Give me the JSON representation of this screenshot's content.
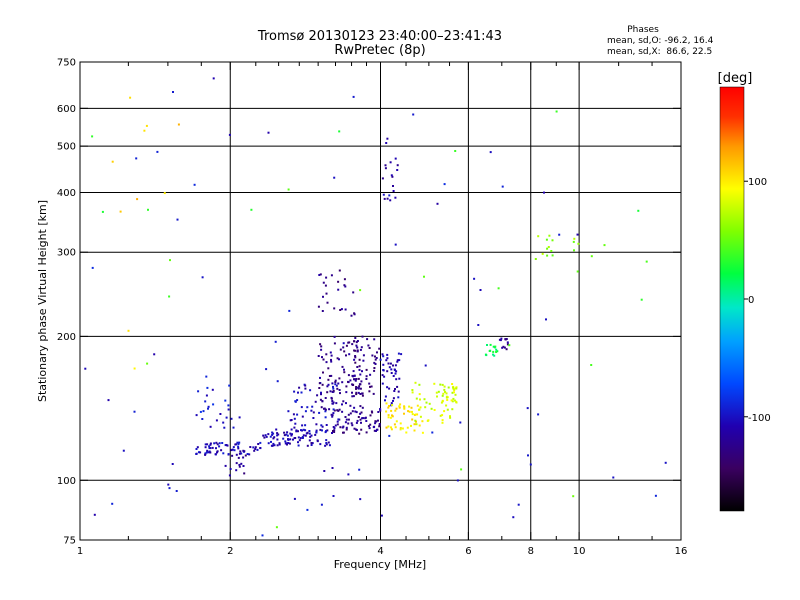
{
  "chart_data": {
    "type": "scatter",
    "title": "Tromsø 20130123 23:40:00–23:41:43",
    "subtitle": "RwPretec (8p)",
    "phases": {
      "heading": "Phases",
      "line_o": "mean, sd,O: -96.2, 16.4",
      "line_x": "mean, sd,X:  86.6, 22.5"
    },
    "xlabel": "Frequency [MHz]",
    "ylabel": "Stationary phase Virtual Height [km]",
    "x_scale": "log",
    "y_scale": "log",
    "xlim": [
      1,
      16
    ],
    "ylim": [
      75,
      750
    ],
    "x_ticks": [
      1,
      2,
      4,
      6,
      8,
      10,
      16
    ],
    "x_minor_ticks": [
      1.25,
      1.5,
      1.75,
      2.25,
      2.5,
      2.75,
      3,
      3.25,
      3.5,
      3.75,
      4.5,
      5,
      5.5,
      7,
      9,
      12,
      14
    ],
    "y_ticks": [
      75,
      100,
      200,
      300,
      400,
      500,
      600,
      750
    ],
    "x_grid": [
      2,
      4,
      6,
      8,
      10
    ],
    "y_grid": [
      100,
      200,
      300,
      400,
      500,
      600
    ],
    "colorbar": {
      "label": "[deg]",
      "range": [
        -180,
        180
      ],
      "ticks": [
        100,
        0,
        -100
      ]
    },
    "traces": [
      {
        "x_range": [
          1.7,
          2.3
        ],
        "y_range": [
          113,
          120
        ],
        "phase": -105,
        "count": 70
      },
      {
        "x_range": [
          2.3,
          3.2
        ],
        "y_range": [
          118,
          128
        ],
        "phase": -110,
        "count": 90
      },
      {
        "x_range": [
          3.2,
          4.0
        ],
        "y_range": [
          125,
          140
        ],
        "phase": -125,
        "count": 70
      },
      {
        "x_range": [
          2.6,
          3.3
        ],
        "y_range": [
          125,
          160
        ],
        "phase": -105,
        "count": 60
      },
      {
        "x_range": [
          3.0,
          3.7
        ],
        "y_range": [
          140,
          200
        ],
        "phase": -125,
        "count": 110
      },
      {
        "x_range": [
          3.5,
          4.0
        ],
        "y_range": [
          150,
          200
        ],
        "phase": -130,
        "count": 50
      },
      {
        "x_range": [
          3.0,
          3.6
        ],
        "y_range": [
          220,
          280
        ],
        "phase": -125,
        "count": 25
      },
      {
        "x_range": [
          4.0,
          4.4
        ],
        "y_range": [
          140,
          185
        ],
        "phase": -110,
        "count": 45
      },
      {
        "x_range": [
          4.1,
          5.0
        ],
        "y_range": [
          125,
          145
        ],
        "phase": 100,
        "count": 55
      },
      {
        "x_range": [
          4.6,
          5.6
        ],
        "y_range": [
          130,
          160
        ],
        "phase": 80,
        "count": 45
      },
      {
        "x_range": [
          5.3,
          5.7
        ],
        "y_range": [
          145,
          160
        ],
        "phase": 80,
        "count": 20
      },
      {
        "x_range": [
          1.7,
          2.1
        ],
        "y_range": [
          128,
          158
        ],
        "phase": -95,
        "count": 25
      },
      {
        "x_range": [
          1.9,
          2.2
        ],
        "y_range": [
          102,
          115
        ],
        "phase": -120,
        "count": 15
      },
      {
        "x_range": [
          4.0,
          4.35
        ],
        "y_range": [
          380,
          520
        ],
        "phase": -110,
        "count": 18
      },
      {
        "x_range": [
          6.5,
          6.9
        ],
        "y_range": [
          182,
          192
        ],
        "phase": 20,
        "count": 15
      },
      {
        "x_range": [
          6.9,
          7.2
        ],
        "y_range": [
          188,
          200
        ],
        "phase": -125,
        "count": 12
      },
      {
        "x_range": [
          8.0,
          10.0
        ],
        "y_range": [
          290,
          340
        ],
        "phase": 60,
        "count": 15
      },
      {
        "x_range": [
          1.1,
          1.6
        ],
        "y_range": [
          160,
          640
        ],
        "phase": 110,
        "count": 10
      },
      {
        "x_range": [
          1.0,
          15.0
        ],
        "y_range": [
          75,
          700
        ],
        "phase": -100,
        "count": 70
      },
      {
        "x_range": [
          1.0,
          15.0
        ],
        "y_range": [
          75,
          700
        ],
        "phase": 40,
        "count": 25
      }
    ]
  }
}
